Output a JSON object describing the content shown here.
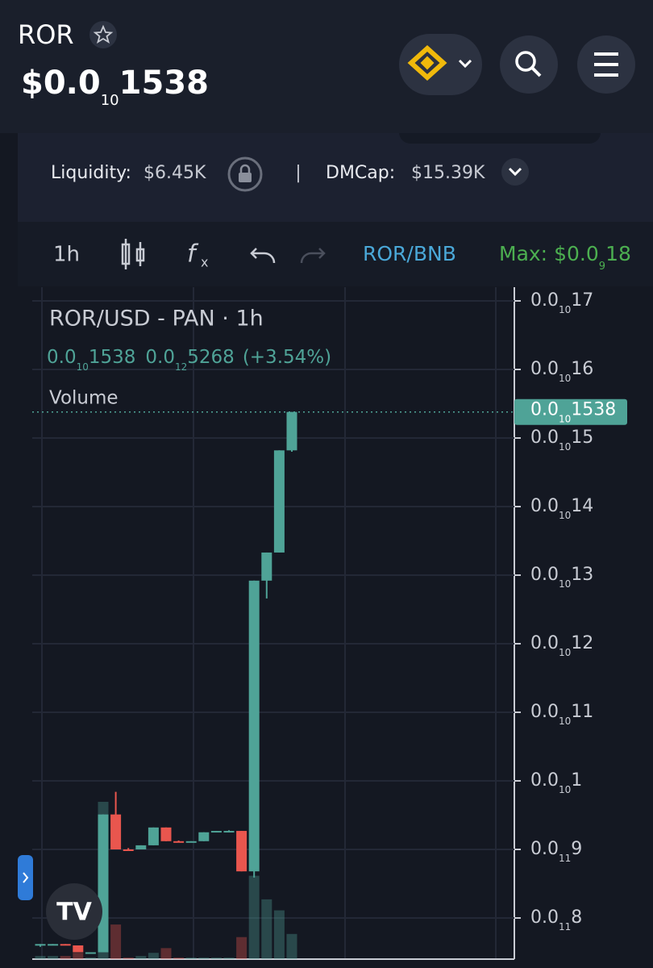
{
  "header": {
    "symbol": "ROR",
    "price": {
      "prefix": "$0.0",
      "sub": "10",
      "digits": "1538"
    }
  },
  "info": {
    "liquidity": {
      "label": "Liquidity:",
      "value": "$6.45K"
    },
    "dmcap": {
      "label": "DMCap:",
      "value": "$15.39K"
    },
    "separator": "|"
  },
  "toolbar": {
    "interval": "1h",
    "pair": "ROR/BNB",
    "max": {
      "label": "Max:",
      "prefix": "$0.0",
      "sub": "9",
      "digits": "18"
    }
  },
  "chart_data": {
    "type": "candlestick",
    "title": "ROR/USD - PAN · 1h",
    "legend": {
      "price": {
        "prefix": "0.0",
        "sub": "10",
        "digits": "1538"
      },
      "change": {
        "prefix": "0.0",
        "sub": "12",
        "digits": "5268"
      },
      "percent": "(+3.54%)"
    },
    "volume_label": "Volume",
    "categories": [
      null,
      null,
      null,
      null,
      null,
      null,
      null,
      null,
      null,
      null,
      null,
      null,
      null,
      null,
      null,
      null,
      null,
      null,
      null,
      null,
      null
    ],
    "open": [
      7.6,
      7.62,
      7.62,
      7.6,
      7.5,
      7.5,
      9.51,
      9.0,
      9.0,
      9.06,
      9.32,
      9.12,
      9.11,
      9.12,
      9.25,
      9.27,
      9.27,
      8.68,
      12.92,
      13.33,
      14.82
    ],
    "high": [
      7.62,
      7.62,
      7.62,
      7.6,
      7.5,
      9.51,
      9.84,
      9.02,
      9.06,
      9.32,
      9.32,
      9.13,
      9.12,
      9.25,
      9.27,
      9.28,
      9.27,
      12.92,
      13.33,
      14.82,
      15.38
    ],
    "low": [
      7.58,
      7.6,
      7.6,
      7.5,
      7.5,
      7.5,
      9.0,
      8.98,
      9.0,
      9.06,
      9.12,
      9.11,
      9.1,
      9.12,
      9.25,
      9.26,
      8.68,
      8.59,
      12.66,
      13.33,
      14.8
    ],
    "close": [
      7.62,
      7.62,
      7.6,
      7.5,
      7.5,
      9.51,
      9.0,
      8.98,
      9.06,
      9.32,
      9.12,
      9.11,
      9.12,
      9.25,
      9.27,
      9.27,
      8.68,
      12.92,
      13.33,
      14.82,
      15.38
    ],
    "volume": [
      2,
      2,
      2,
      4,
      1,
      100,
      22,
      1,
      2,
      4,
      7,
      1,
      1,
      1,
      1,
      1,
      14,
      53,
      38,
      31,
      16
    ],
    "volume_lim": [
      0,
      100
    ],
    "up_color": "#4fa397",
    "down_color": "#e9564e",
    "ylim": [
      7.4,
      17.2
    ],
    "yticks": [
      {
        "value": 17,
        "prefix": "0.0",
        "sub": "10",
        "digits": "17"
      },
      {
        "value": 16,
        "prefix": "0.0",
        "sub": "10",
        "digits": "16"
      },
      {
        "value": 15,
        "prefix": "0.0",
        "sub": "10",
        "digits": "15"
      },
      {
        "value": 14,
        "prefix": "0.0",
        "sub": "10",
        "digits": "14"
      },
      {
        "value": 13,
        "prefix": "0.0",
        "sub": "10",
        "digits": "13"
      },
      {
        "value": 12,
        "prefix": "0.0",
        "sub": "10",
        "digits": "12"
      },
      {
        "value": 11,
        "prefix": "0.0",
        "sub": "10",
        "digits": "11"
      },
      {
        "value": 10,
        "prefix": "0.0",
        "sub": "10",
        "digits": "1"
      },
      {
        "value": 9,
        "prefix": "0.0",
        "sub": "11",
        "digits": "9"
      },
      {
        "value": 8,
        "prefix": "0.0",
        "sub": "11",
        "digits": "8"
      }
    ],
    "last": {
      "value": 15.38,
      "prefix": "0.0",
      "sub": "10",
      "digits": "1538"
    },
    "grid": true
  }
}
